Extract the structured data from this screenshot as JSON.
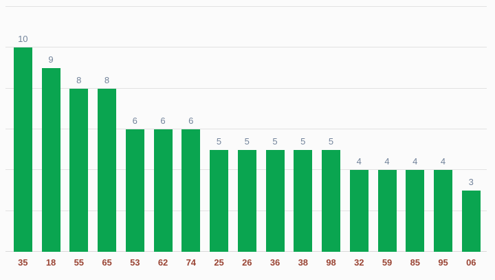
{
  "chart_data": {
    "type": "bar",
    "title": "",
    "xlabel": "",
    "ylabel": "",
    "categories": [
      "35",
      "18",
      "55",
      "65",
      "53",
      "62",
      "74",
      "25",
      "26",
      "36",
      "38",
      "98",
      "32",
      "59",
      "85",
      "95",
      "06"
    ],
    "values": [
      10,
      9,
      8,
      8,
      6,
      6,
      6,
      5,
      5,
      5,
      5,
      5,
      4,
      4,
      4,
      4,
      3
    ],
    "annotations": [
      "10",
      "9",
      "8",
      "8",
      "6",
      "6",
      "6",
      "5",
      "5",
      "5",
      "5",
      "5",
      "4",
      "4",
      "4",
      "4",
      "3"
    ],
    "ylim": [
      0,
      12
    ],
    "yticks": [
      0,
      2,
      4,
      6,
      8,
      10,
      12
    ],
    "y_tick_labels_shown": false,
    "grid": true,
    "legend": "none",
    "colors": {
      "bar": "#0aa550",
      "annotation_text": "#73849b",
      "category_label_text": "#9a4535",
      "gridline": "#e2e2e2",
      "baseline": "#d9d9d9",
      "background": "#fbfbfb"
    }
  }
}
